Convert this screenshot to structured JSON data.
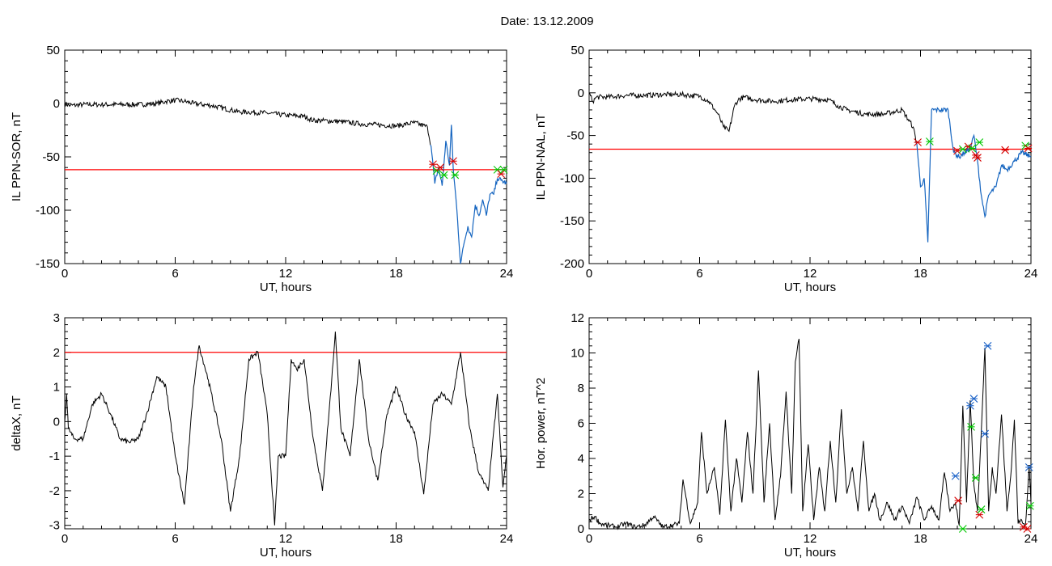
{
  "figure": {
    "title": "Date:  13.12.2009"
  },
  "colors": {
    "trace": "#000000",
    "threshold": "#ff0000",
    "highlight": "#1565c0",
    "marker_red": "#d50000",
    "marker_green": "#00c800",
    "marker_blue": "#1e64c8"
  },
  "chart_data": [
    {
      "id": "ppn-sor",
      "type": "line",
      "title": "",
      "xlabel": "UT, hours",
      "ylabel": "IL PPN-SOR, nT",
      "xlim": [
        0,
        24
      ],
      "ylim": [
        -150,
        50
      ],
      "xticks": [
        0,
        6,
        12,
        18,
        24
      ],
      "yticks": [
        -150,
        -100,
        -50,
        0,
        50
      ],
      "threshold": -62,
      "series": [
        {
          "x": [
            0,
            0.3,
            1,
            2,
            3,
            4,
            5,
            5.5,
            6,
            6.5,
            7,
            8,
            9,
            9.5,
            10,
            11,
            12,
            13,
            13.5,
            14,
            15,
            16,
            17,
            18,
            19,
            19.7,
            19.9,
            20.1,
            20.3,
            20.5,
            20.7,
            20.9,
            21,
            21.1,
            21.3,
            21.5,
            21.7,
            21.9,
            22.1,
            22.3,
            22.5,
            22.7,
            22.9,
            23.1,
            23.3,
            23.5,
            23.7,
            24
          ],
          "y": [
            0,
            -2,
            -1,
            -1,
            -1,
            -1,
            0,
            2,
            3,
            2,
            0,
            -2,
            -6,
            -8,
            -8,
            -9,
            -11,
            -12,
            -16,
            -16,
            -17,
            -19,
            -20,
            -21,
            -18,
            -22,
            -40,
            -75,
            -60,
            -77,
            -35,
            -58,
            -20,
            -60,
            -100,
            -150,
            -130,
            -115,
            -125,
            -95,
            -105,
            -90,
            -105,
            -85,
            -85,
            -70,
            -72,
            -75
          ]
        }
      ],
      "highlight_from": 19.9,
      "markers": [
        {
          "x": 20.0,
          "y": -57,
          "color": "red"
        },
        {
          "x": 20.2,
          "y": -63,
          "color": "green"
        },
        {
          "x": 20.4,
          "y": -60,
          "color": "red"
        },
        {
          "x": 20.6,
          "y": -67,
          "color": "green"
        },
        {
          "x": 21.1,
          "y": -54,
          "color": "red"
        },
        {
          "x": 21.2,
          "y": -67,
          "color": "green"
        },
        {
          "x": 23.5,
          "y": -62,
          "color": "green"
        },
        {
          "x": 23.7,
          "y": -66,
          "color": "red"
        },
        {
          "x": 23.85,
          "y": -62,
          "color": "green"
        }
      ]
    },
    {
      "id": "ppn-nal",
      "type": "line",
      "title": "",
      "xlabel": "UT, hours",
      "ylabel": "IL PPN-NAL, nT",
      "xlim": [
        0,
        24
      ],
      "ylim": [
        -200,
        50
      ],
      "xticks": [
        0,
        6,
        12,
        18,
        24
      ],
      "yticks": [
        -200,
        -150,
        -100,
        -50,
        0,
        50
      ],
      "threshold": -66,
      "series": [
        {
          "x": [
            0,
            0.2,
            0.4,
            1,
            2,
            3,
            4,
            5,
            6,
            6.5,
            7,
            7.3,
            7.6,
            7.9,
            8.1,
            8.4,
            9,
            10,
            11,
            12,
            13,
            13.5,
            14,
            15,
            16,
            17,
            17.6,
            17.8,
            18,
            18.2,
            18.4,
            18.6,
            19,
            19.5,
            19.8,
            20.1,
            20.4,
            20.7,
            20.9,
            21.1,
            21.3,
            21.5,
            21.7,
            22.1,
            22.4,
            22.7,
            23.1,
            23.5,
            24
          ],
          "y": [
            0,
            -10,
            -5,
            -5,
            -3,
            -3,
            -2,
            -2,
            -4,
            -10,
            -25,
            -40,
            -45,
            -15,
            -8,
            -5,
            -8,
            -10,
            -8,
            -7,
            -8,
            -15,
            -20,
            -25,
            -25,
            -20,
            -40,
            -60,
            -110,
            -100,
            -175,
            -20,
            -20,
            -20,
            -70,
            -75,
            -70,
            -65,
            -50,
            -80,
            -120,
            -145,
            -120,
            -110,
            -85,
            -90,
            -80,
            -70,
            -75
          ]
        }
      ],
      "highlight_from": 17.8,
      "markers": [
        {
          "x": 17.85,
          "y": -58,
          "color": "red"
        },
        {
          "x": 18.5,
          "y": -57,
          "color": "green"
        },
        {
          "x": 20.0,
          "y": -68,
          "color": "red"
        },
        {
          "x": 20.3,
          "y": -66,
          "color": "green"
        },
        {
          "x": 20.6,
          "y": -63,
          "color": "red"
        },
        {
          "x": 20.8,
          "y": -65,
          "color": "green"
        },
        {
          "x": 21.0,
          "y": -73,
          "color": "red"
        },
        {
          "x": 21.1,
          "y": -76,
          "color": "red"
        },
        {
          "x": 21.2,
          "y": -58,
          "color": "green"
        },
        {
          "x": 22.6,
          "y": -67,
          "color": "red"
        },
        {
          "x": 23.7,
          "y": -62,
          "color": "green"
        },
        {
          "x": 23.85,
          "y": -65,
          "color": "red"
        }
      ]
    },
    {
      "id": "deltax",
      "type": "line",
      "title": "",
      "xlabel": "UT, hours",
      "ylabel": "deltaX, nT",
      "xlim": [
        0,
        24
      ],
      "ylim": [
        -3.1,
        3
      ],
      "xticks": [
        0,
        6,
        12,
        18,
        24
      ],
      "yticks": [
        -3,
        -2,
        -1,
        0,
        1,
        2,
        3
      ],
      "threshold": 2,
      "series": [
        {
          "x": [
            0,
            0.1,
            0.2,
            0.5,
            1.0,
            1.5,
            2.0,
            2.5,
            3.0,
            3.5,
            4.0,
            4.5,
            5.0,
            5.5,
            6.0,
            6.5,
            7.0,
            7.3,
            7.8,
            8.5,
            9.0,
            9.5,
            10.0,
            10.5,
            11.0,
            11.4,
            11.6,
            12.0,
            12.3,
            12.6,
            13.0,
            13.5,
            14.0,
            14.5,
            14.7,
            15.0,
            15.5,
            16.0,
            16.5,
            17.0,
            17.5,
            18.0,
            18.5,
            19.0,
            19.5,
            20.0,
            20.5,
            21.0,
            21.5,
            22.0,
            22.5,
            23.0,
            23.5,
            23.8,
            24.0
          ],
          "y": [
            0,
            0.8,
            -0.2,
            -0.5,
            -0.5,
            0.5,
            0.8,
            0.2,
            -0.5,
            -0.6,
            -0.5,
            0.3,
            1.3,
            1.0,
            -1.0,
            -2.4,
            1.0,
            2.2,
            1.2,
            -0.5,
            -2.6,
            -1.0,
            1.8,
            2.0,
            0.2,
            -3.0,
            -1.0,
            -1.0,
            1.8,
            1.5,
            1.8,
            -0.5,
            -2.0,
            1.2,
            2.6,
            -0.2,
            -1.0,
            1.8,
            -0.5,
            -1.7,
            0.2,
            1.0,
            0.2,
            -0.3,
            -2.1,
            0.5,
            0.8,
            0.5,
            2.0,
            -0.2,
            -1.5,
            -2.0,
            0.8,
            -1.9,
            -1.0
          ]
        }
      ],
      "markers": []
    },
    {
      "id": "hor-power",
      "type": "line",
      "title": "",
      "xlabel": "UT, hours",
      "ylabel": "Hor. power, nT^2",
      "xlim": [
        0,
        24
      ],
      "ylim": [
        0,
        12
      ],
      "xticks": [
        0,
        6,
        12,
        18,
        24
      ],
      "yticks": [
        0,
        2,
        4,
        6,
        8,
        10,
        12
      ],
      "series": [
        {
          "x": [
            0,
            0.3,
            0.6,
            1.0,
            1.5,
            2.0,
            2.5,
            3.0,
            3.5,
            4.0,
            4.5,
            4.9,
            5.1,
            5.5,
            5.9,
            6.1,
            6.4,
            6.8,
            7.1,
            7.4,
            7.7,
            8.0,
            8.3,
            8.6,
            8.9,
            9.2,
            9.5,
            9.8,
            10.1,
            10.4,
            10.7,
            11.0,
            11.2,
            11.4,
            11.6,
            11.9,
            12.2,
            12.5,
            12.8,
            13.1,
            13.4,
            13.7,
            14.0,
            14.3,
            14.6,
            14.9,
            15.2,
            15.5,
            15.8,
            16.2,
            16.6,
            17.0,
            17.4,
            17.8,
            18.2,
            18.6,
            19.0,
            19.3,
            19.6,
            19.9,
            20.1,
            20.3,
            20.5,
            20.7,
            20.9,
            21.1,
            21.3,
            21.5,
            21.7,
            21.9,
            22.1,
            22.4,
            22.7,
            22.9,
            23.1,
            23.3,
            23.5,
            23.7,
            23.9,
            24.0
          ],
          "y": [
            0.5,
            0.7,
            0.3,
            0.2,
            0.1,
            0.3,
            0.1,
            0.2,
            0.7,
            0.1,
            0.2,
            0.3,
            2.8,
            0.3,
            1.5,
            5.5,
            2.0,
            3.5,
            0.8,
            6.2,
            1.0,
            4.0,
            1.5,
            5.5,
            2.0,
            9.0,
            1.5,
            6.0,
            0.5,
            3.0,
            7.8,
            2.0,
            9.5,
            10.8,
            1.0,
            4.8,
            0.5,
            3.5,
            1.0,
            5.0,
            1.5,
            6.8,
            2.0,
            3.5,
            1.0,
            5.0,
            1.0,
            2.0,
            0.5,
            1.5,
            0.5,
            1.3,
            0.3,
            1.8,
            0.5,
            1.3,
            0.5,
            3.2,
            1.0,
            1.5,
            0.2,
            7.0,
            1.5,
            7.3,
            2.5,
            1.0,
            5.5,
            10.3,
            1.0,
            3.5,
            2.0,
            6.5,
            1.0,
            3.0,
            6.2,
            0.3,
            0.5,
            0.2,
            3.5,
            1.5
          ]
        }
      ],
      "markers": [
        {
          "x": 19.9,
          "y": 3.0,
          "color": "blue"
        },
        {
          "x": 20.05,
          "y": 1.6,
          "color": "red"
        },
        {
          "x": 20.3,
          "y": 0.0,
          "color": "green"
        },
        {
          "x": 20.7,
          "y": 7.0,
          "color": "blue"
        },
        {
          "x": 20.75,
          "y": 5.8,
          "color": "green"
        },
        {
          "x": 20.9,
          "y": 7.4,
          "color": "blue"
        },
        {
          "x": 21.0,
          "y": 2.9,
          "color": "green"
        },
        {
          "x": 21.2,
          "y": 0.8,
          "color": "red"
        },
        {
          "x": 21.3,
          "y": 1.1,
          "color": "green"
        },
        {
          "x": 21.5,
          "y": 5.4,
          "color": "blue"
        },
        {
          "x": 21.65,
          "y": 10.4,
          "color": "blue"
        },
        {
          "x": 23.6,
          "y": 0.1,
          "color": "red"
        },
        {
          "x": 23.8,
          "y": 0.0,
          "color": "red"
        },
        {
          "x": 23.9,
          "y": 3.5,
          "color": "blue"
        },
        {
          "x": 23.95,
          "y": 1.3,
          "color": "green"
        }
      ]
    }
  ]
}
